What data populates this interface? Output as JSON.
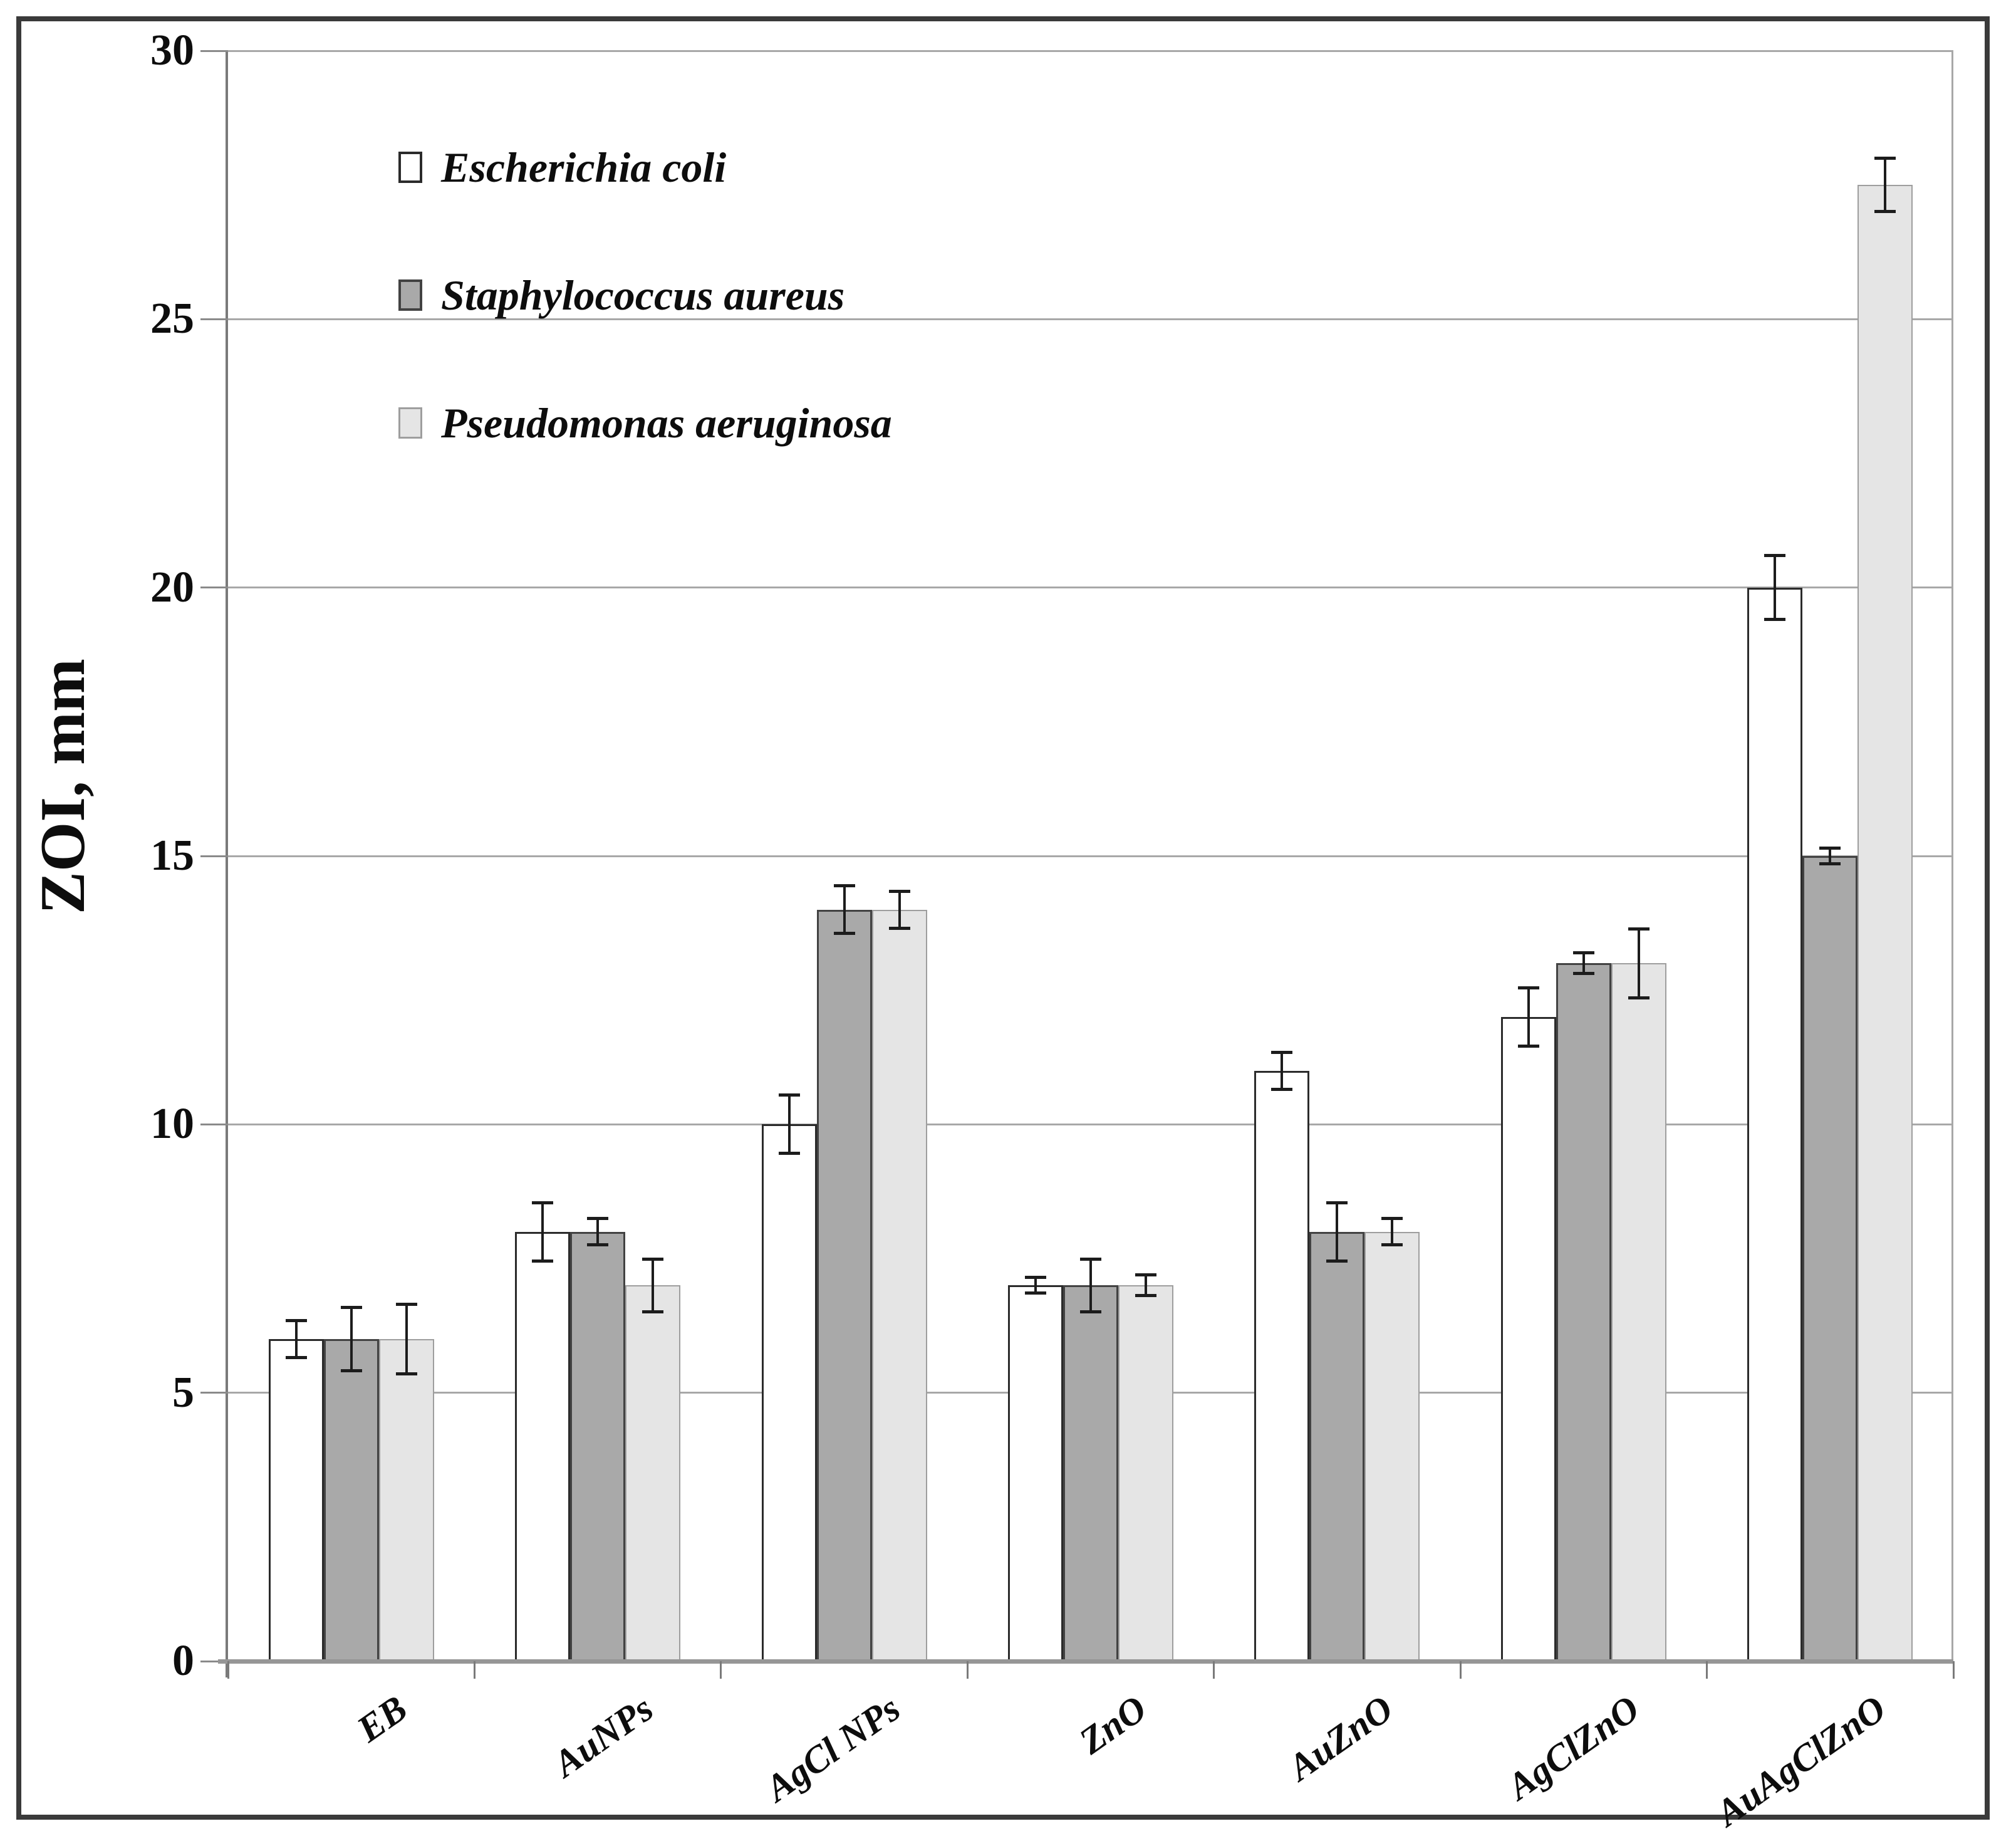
{
  "figure": {
    "background": "#ffffff",
    "frame_color": "#3a3a3a",
    "gridline_color": "#a8a8a8",
    "axis_color": "#7a7a7a",
    "error_bar_color": "#1c1c1c"
  },
  "chart_data": {
    "type": "bar",
    "title": "",
    "ylabel": "ZOI, mm",
    "xlabel": "",
    "ylim": [
      0,
      30
    ],
    "yticks": [
      0,
      5,
      10,
      15,
      20,
      25,
      30
    ],
    "grid": true,
    "legend_position": "upper-left-inside",
    "categories": [
      "EB",
      "AuNPs",
      "AgCl NPs",
      "ZnO",
      "AuZnO",
      "AgClZnO",
      "AuAgClZnO"
    ],
    "series": [
      {
        "name": "Escherichia coli",
        "fill": "#ffffff",
        "border": "#2b2b2b",
        "values": [
          6,
          8,
          10,
          7,
          11,
          12,
          20
        ],
        "errors": [
          0.35,
          0.55,
          0.55,
          0.15,
          0.35,
          0.55,
          0.6
        ]
      },
      {
        "name": "Staphylococcus aureus",
        "fill": "#a9a9a9",
        "border": "#424242",
        "values": [
          6,
          8,
          14,
          7,
          8,
          13,
          15
        ],
        "errors": [
          0.6,
          0.25,
          0.45,
          0.5,
          0.55,
          0.2,
          0.15
        ]
      },
      {
        "name": "Pseudomonas aeruginosa",
        "fill": "#e5e5e5",
        "border": "#9e9e9e",
        "values": [
          6,
          7,
          14,
          7,
          8,
          13,
          27.5
        ],
        "errors": [
          0.65,
          0.5,
          0.35,
          0.2,
          0.25,
          0.65,
          0.5
        ]
      }
    ]
  }
}
